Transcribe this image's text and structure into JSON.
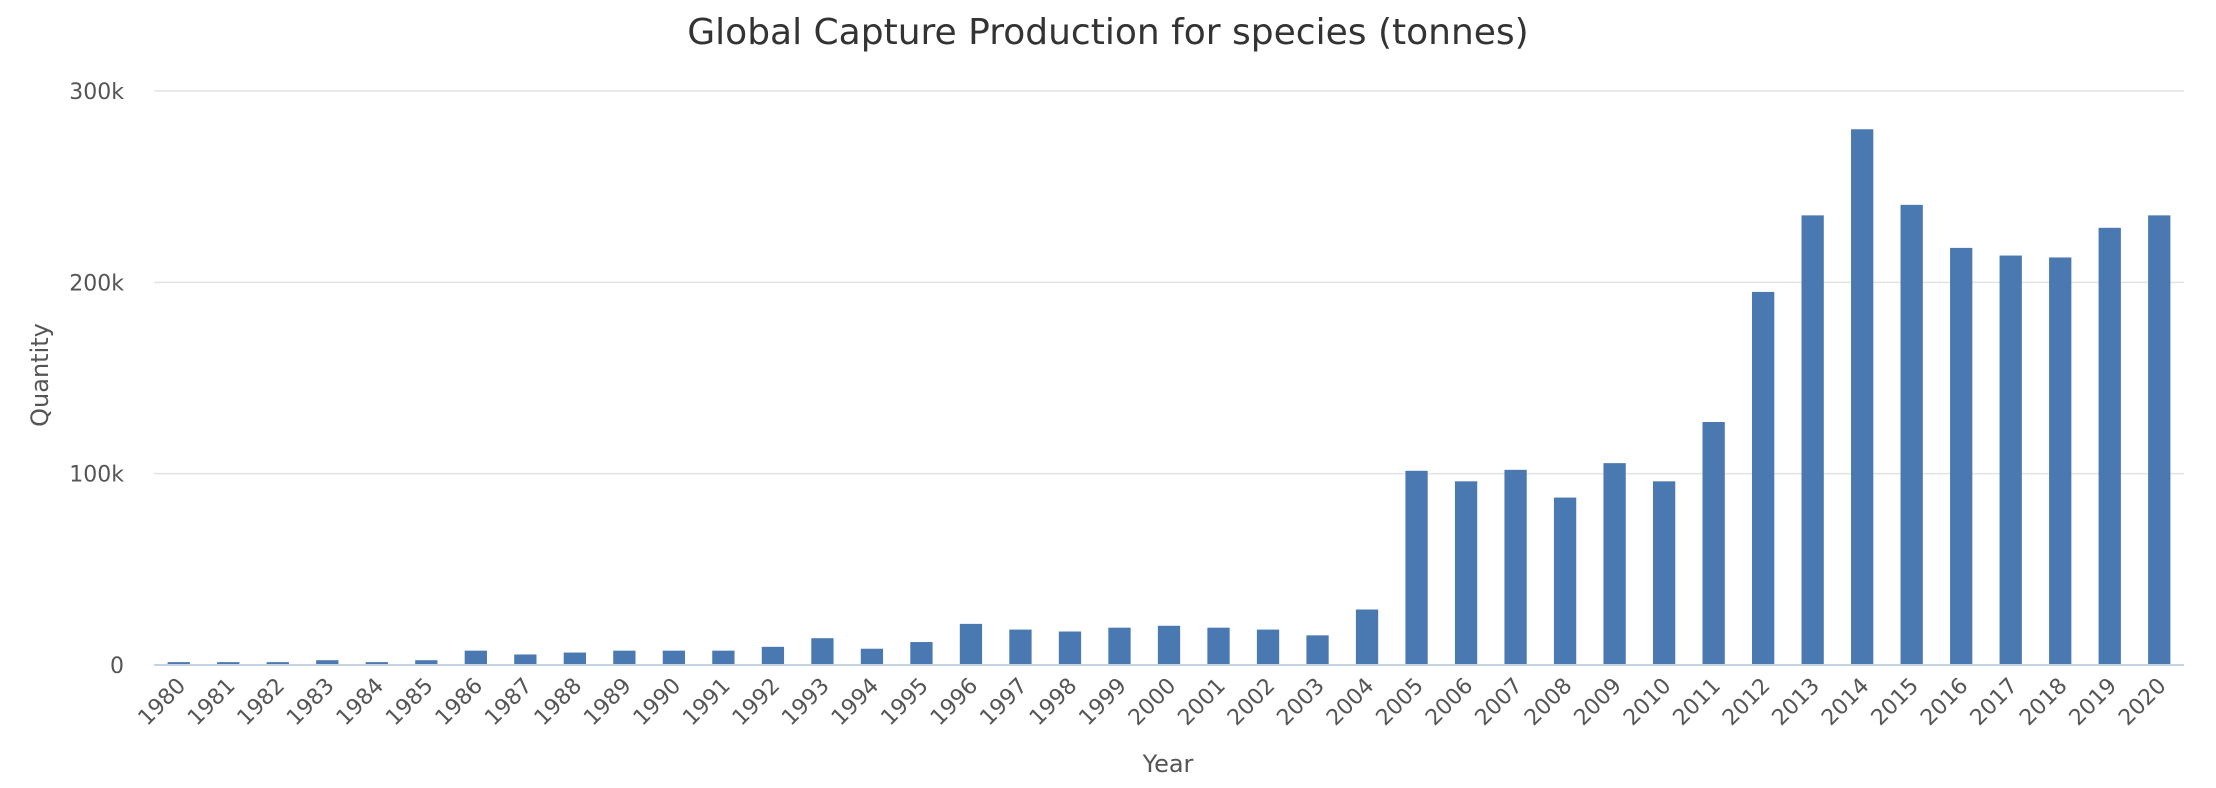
{
  "chart_data": {
    "type": "bar",
    "title": "Global Capture Production for species (tonnes)",
    "xlabel": "Year",
    "ylabel": "Quantity",
    "ylim": [
      0,
      300000
    ],
    "yticks": [
      {
        "value": 0,
        "label": "0"
      },
      {
        "value": 100000,
        "label": "100k"
      },
      {
        "value": 200000,
        "label": "200k"
      },
      {
        "value": 300000,
        "label": "300k"
      }
    ],
    "grid": true,
    "bar_color": "#4a78b0",
    "categories": [
      "1980",
      "1981",
      "1982",
      "1983",
      "1984",
      "1985",
      "1986",
      "1987",
      "1988",
      "1989",
      "1990",
      "1991",
      "1992",
      "1993",
      "1994",
      "1995",
      "1996",
      "1997",
      "1998",
      "1999",
      "2000",
      "2001",
      "2002",
      "2003",
      "2004",
      "2005",
      "2006",
      "2007",
      "2008",
      "2009",
      "2010",
      "2011",
      "2012",
      "2013",
      "2014",
      "2015",
      "2016",
      "2017",
      "2018",
      "2019",
      "2020"
    ],
    "values": [
      1500,
      1500,
      1500,
      2500,
      1500,
      2500,
      7500,
      5500,
      6500,
      7500,
      7500,
      7500,
      9500,
      14000,
      8500,
      12000,
      21500,
      18500,
      17500,
      19500,
      20500,
      19500,
      18500,
      15500,
      29000,
      101500,
      96000,
      102000,
      87500,
      105500,
      96000,
      127000,
      195000,
      235000,
      280000,
      240500,
      218000,
      214000,
      213000,
      228500,
      235000
    ]
  }
}
